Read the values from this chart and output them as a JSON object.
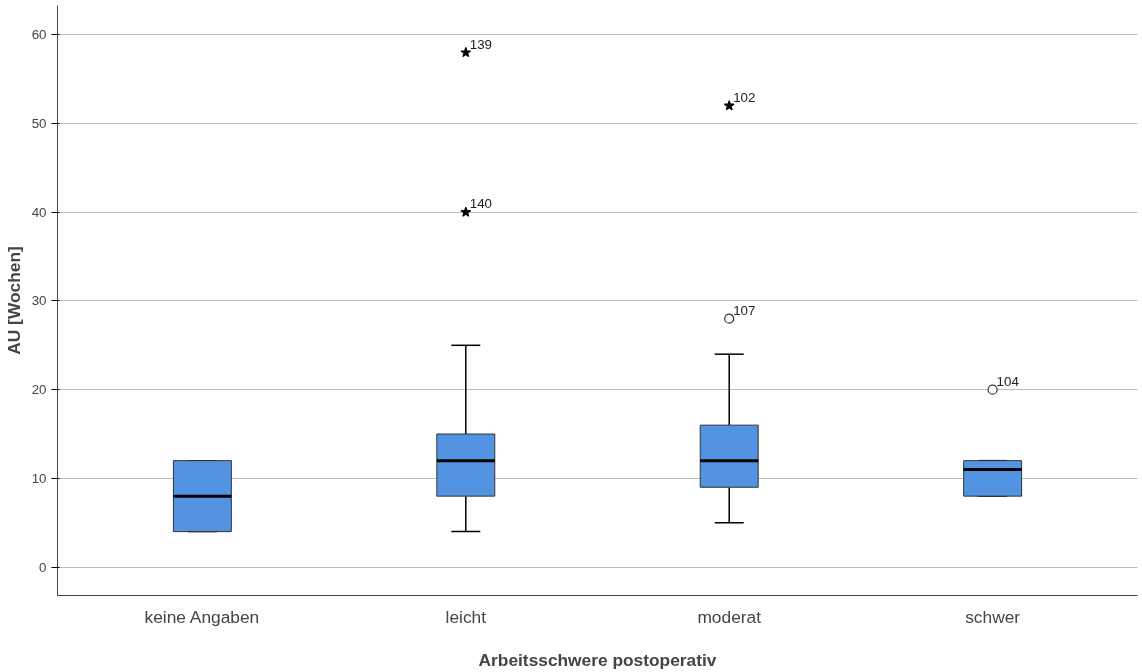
{
  "chart_data": {
    "type": "box",
    "xlabel": "Arbeitsschwere postoperativ",
    "ylabel": "AU [Wochen]",
    "categories": [
      "keine Angaben",
      "leicht",
      "moderat",
      "schwer"
    ],
    "color": "#5294e2",
    "boxes": [
      {
        "low": 4,
        "q1": 4,
        "median": 8,
        "q3": 12,
        "high": 12
      },
      {
        "low": 4,
        "q1": 8,
        "median": 12,
        "q3": 15,
        "high": 25
      },
      {
        "low": 5,
        "q1": 9,
        "median": 12,
        "q3": 16,
        "high": 24
      },
      {
        "low": 8,
        "q1": 8,
        "median": 11,
        "q3": 12,
        "high": 12
      }
    ],
    "series": [
      {
        "type": "scatter",
        "marker": "star",
        "color": "#000000",
        "x": [
          "leicht",
          "leicht",
          "moderat"
        ],
        "values": [
          58,
          40,
          52
        ]
      },
      {
        "type": "scatter",
        "marker": "circle",
        "color": "#333333",
        "x": [
          "moderat",
          "schwer"
        ],
        "values": [
          28,
          20
        ]
      }
    ],
    "annotations": [
      {
        "text": "139",
        "x": "leicht",
        "y": 58
      },
      {
        "text": "140",
        "x": "leicht",
        "y": 40
      },
      {
        "text": "102",
        "x": "moderat",
        "y": 52
      },
      {
        "text": "107",
        "x": "moderat",
        "y": 28
      },
      {
        "text": "104",
        "x": "schwer",
        "y": 20
      }
    ],
    "ylim": [
      -3.2,
      63.3
    ],
    "yticks": [
      0,
      10,
      20,
      30,
      40,
      50,
      60
    ],
    "grid": "y"
  }
}
